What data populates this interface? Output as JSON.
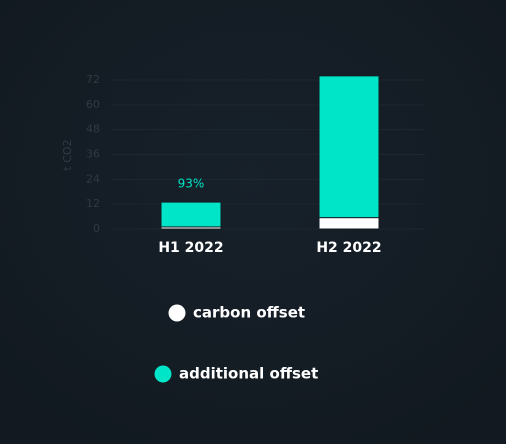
{
  "chart_data": {
    "type": "stacked_bar",
    "y_label": "t CO2",
    "categories": [
      "H1 2022",
      "H2 2022"
    ],
    "series": [
      {
        "name": "carbon offset",
        "color": "#ffffff",
        "values": [
          1,
          5.5
        ]
      },
      {
        "name": "additional offset",
        "color": "#00e5c7",
        "values": [
          12,
          68.5
        ]
      }
    ],
    "annotations": [
      {
        "text": "93%",
        "category": 0
      }
    ],
    "ylim": [
      0,
      72
    ],
    "yticks": [
      0,
      12,
      24,
      36,
      48,
      60,
      72
    ],
    "grid": true
  }
}
